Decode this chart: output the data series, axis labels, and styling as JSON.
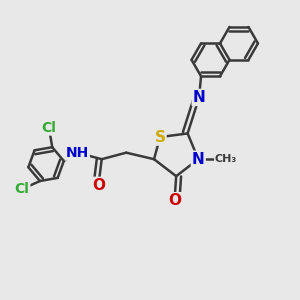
{
  "bg_color": "#e8e8e8",
  "bond_color": "#3a3a3a",
  "bond_width": 1.8,
  "colors": {
    "S": "#ccaa00",
    "N": "#0000cc",
    "O": "#cc0000",
    "Cl": "#33aa33",
    "C": "#3a3a3a"
  },
  "font_size": 9,
  "figsize": [
    3.0,
    3.0
  ],
  "dpi": 100
}
